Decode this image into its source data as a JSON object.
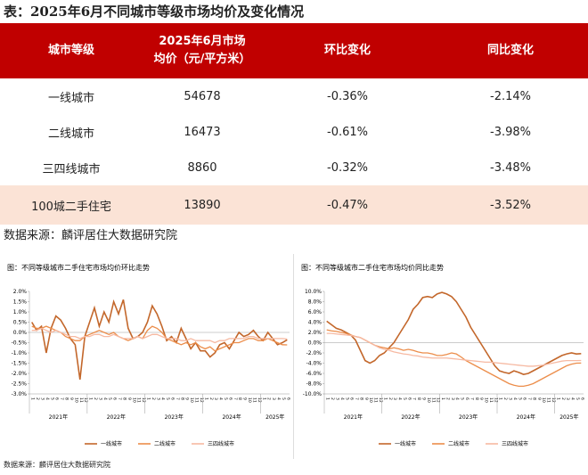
{
  "table": {
    "title": "表：2025年6月不同城市等级市场均价及变化情况",
    "header": [
      "城市等级",
      [
        "2025年6月市场",
        "均价（元/平方米）"
      ],
      "环比变化",
      "同比变化"
    ],
    "rows": [
      [
        "一线城市",
        "54678",
        "-0.36%",
        "-2.14%"
      ],
      [
        "二线城市",
        "16473",
        "-0.61%",
        "-3.98%"
      ],
      [
        "三四线城市",
        "8860",
        "-0.32%",
        "-3.48%"
      ],
      [
        "100城二手住宅",
        "13890",
        "-0.47%",
        "-3.52%"
      ]
    ]
  },
  "source": "数据来源：麟评居住大数据研究院",
  "footnote": "数据来源：麟评居住大数据研究院",
  "chart_data": [
    {
      "type": "line",
      "title": "图：不同等级城市二手住宅市场均价环比走势",
      "categories": [
        "1",
        "2",
        "3",
        "4",
        "5",
        "6",
        "7",
        "8",
        "9",
        "10",
        "11",
        "12",
        "1",
        "2",
        "3",
        "4",
        "5",
        "6",
        "7",
        "8",
        "9",
        "10",
        "11",
        "12",
        "1",
        "2",
        "3",
        "4",
        "5",
        "6",
        "7",
        "8",
        "9",
        "10",
        "11",
        "12",
        "1",
        "2",
        "3",
        "4",
        "5",
        "6",
        "7",
        "8",
        "9",
        "10",
        "11",
        "12",
        "1",
        "2",
        "3",
        "4",
        "5",
        "6"
      ],
      "category_groups": [
        {
          "label": "2021年",
          "size": 12
        },
        {
          "label": "2022年",
          "size": 12
        },
        {
          "label": "2023年",
          "size": 12
        },
        {
          "label": "2024年",
          "size": 12
        },
        {
          "label": "2025年",
          "size": 6
        }
      ],
      "ylim": [
        -3,
        2
      ],
      "yticks": [
        {
          "value": 2,
          "label": "2.0%"
        },
        {
          "value": 1.5,
          "label": "1.5%"
        },
        {
          "value": 1,
          "label": "1.0%"
        },
        {
          "value": 0.5,
          "label": "0.5%"
        },
        {
          "value": 0,
          "label": "0.0%"
        },
        {
          "value": -0.5,
          "label": "-0.5%"
        },
        {
          "value": -1,
          "label": "-1.0%"
        },
        {
          "value": -1.5,
          "label": "-1.5%"
        },
        {
          "value": -2,
          "label": "-2.0%"
        },
        {
          "value": -2.5,
          "label": "-2.5%"
        },
        {
          "value": -3,
          "label": "-3.0%"
        }
      ],
      "series": [
        {
          "name": "一线城市",
          "color": "#c3672b",
          "values": [
            0.5,
            0.1,
            0.3,
            -1.0,
            0.2,
            0.8,
            0.6,
            0.2,
            -0.3,
            -0.6,
            -2.3,
            -0.2,
            0.5,
            1.2,
            0.3,
            1.0,
            0.5,
            1.5,
            0.9,
            1.6,
            0.2,
            -0.3,
            -0.2,
            0.0,
            0.5,
            1.3,
            0.9,
            0.3,
            -0.4,
            -0.2,
            -0.5,
            0.2,
            -0.3,
            -0.8,
            -0.5,
            -0.9,
            -0.9,
            -1.2,
            -1.0,
            -0.6,
            -0.5,
            -0.8,
            -0.4,
            0.0,
            -0.2,
            -0.1,
            0.1,
            -0.2,
            -0.4,
            0.0,
            -0.3,
            -0.6,
            -0.5,
            -0.36
          ]
        },
        {
          "name": "二线城市",
          "color": "#ec8d4a",
          "values": [
            0.3,
            0.2,
            0.2,
            0.3,
            0.2,
            0.1,
            0.0,
            -0.2,
            -0.3,
            -0.4,
            -0.4,
            -0.2,
            -0.1,
            0.0,
            0.1,
            0.0,
            -0.1,
            0.0,
            -0.2,
            -0.3,
            -0.4,
            -0.3,
            -0.2,
            -0.3,
            0.1,
            0.3,
            0.2,
            0.0,
            -0.3,
            -0.4,
            -0.5,
            -0.6,
            -0.5,
            -0.6,
            -0.5,
            -0.7,
            -0.8,
            -0.7,
            -0.9,
            -0.8,
            -0.7,
            -0.6,
            -0.5,
            -0.5,
            -0.4,
            -0.3,
            -0.3,
            -0.4,
            -0.4,
            -0.3,
            -0.4,
            -0.5,
            -0.6,
            -0.61
          ]
        },
        {
          "name": "三四线城市",
          "color": "#f6b9a2",
          "values": [
            0.1,
            0.1,
            0.2,
            0.1,
            0.0,
            0.1,
            0.0,
            -0.1,
            -0.2,
            -0.2,
            -0.3,
            -0.2,
            -0.2,
            -0.1,
            -0.1,
            -0.2,
            -0.2,
            -0.1,
            -0.2,
            -0.3,
            -0.3,
            -0.3,
            -0.2,
            -0.3,
            -0.2,
            -0.1,
            -0.1,
            -0.2,
            -0.3,
            -0.3,
            -0.3,
            -0.4,
            -0.4,
            -0.3,
            -0.4,
            -0.4,
            -0.4,
            -0.4,
            -0.5,
            -0.4,
            -0.4,
            -0.3,
            -0.3,
            -0.3,
            -0.3,
            -0.2,
            -0.2,
            -0.3,
            -0.3,
            -0.3,
            -0.3,
            -0.3,
            -0.3,
            -0.32
          ]
        }
      ]
    },
    {
      "type": "line",
      "title": "图：不同等级城市二手住宅市场均价同比走势",
      "categories": [
        "1",
        "2",
        "3",
        "4",
        "5",
        "6",
        "7",
        "8",
        "9",
        "10",
        "11",
        "12",
        "1",
        "2",
        "3",
        "4",
        "5",
        "6",
        "7",
        "8",
        "9",
        "10",
        "11",
        "12",
        "1",
        "2",
        "3",
        "4",
        "5",
        "6",
        "7",
        "8",
        "9",
        "10",
        "11",
        "12",
        "1",
        "2",
        "3",
        "4",
        "5",
        "6",
        "7",
        "8",
        "9",
        "10",
        "11",
        "12",
        "1",
        "2",
        "3",
        "4",
        "5",
        "6"
      ],
      "category_groups": [
        {
          "label": "2021年",
          "size": 12
        },
        {
          "label": "2022年",
          "size": 12
        },
        {
          "label": "2023年",
          "size": 12
        },
        {
          "label": "2024年",
          "size": 12
        },
        {
          "label": "2025年",
          "size": 6
        }
      ],
      "ylim": [
        -10,
        10
      ],
      "yticks": [
        {
          "value": 10,
          "label": "10.0%"
        },
        {
          "value": 8,
          "label": "8.0%"
        },
        {
          "value": 6,
          "label": "6.0%"
        },
        {
          "value": 4,
          "label": "4.0%"
        },
        {
          "value": 2,
          "label": "2.0%"
        },
        {
          "value": 0,
          "label": "0.0%"
        },
        {
          "value": -2,
          "label": "-2.0%"
        },
        {
          "value": -4,
          "label": "-4.0%"
        },
        {
          "value": -6,
          "label": "-6.0%"
        },
        {
          "value": -8,
          "label": "-8.0%"
        },
        {
          "value": -10,
          "label": "-10.0%"
        }
      ],
      "series": [
        {
          "name": "一线城市",
          "color": "#c3672b",
          "values": [
            4.2,
            3.5,
            2.8,
            2.5,
            2.0,
            1.5,
            0.5,
            -1.5,
            -3.5,
            -4.0,
            -3.5,
            -2.5,
            -2.0,
            -1.0,
            0.0,
            1.5,
            3.0,
            4.5,
            6.5,
            7.5,
            8.8,
            9.0,
            8.8,
            9.5,
            9.8,
            9.5,
            9.0,
            8.0,
            6.5,
            5.0,
            3.0,
            1.5,
            0.0,
            -1.5,
            -3.0,
            -4.5,
            -5.5,
            -5.8,
            -6.0,
            -5.5,
            -5.8,
            -6.2,
            -6.0,
            -5.5,
            -5.0,
            -4.5,
            -4.0,
            -3.5,
            -3.0,
            -2.5,
            -2.2,
            -2.0,
            -2.2,
            -2.14
          ]
        },
        {
          "name": "二线城市",
          "color": "#ec8d4a",
          "values": [
            2.5,
            2.3,
            2.2,
            2.0,
            1.8,
            1.5,
            1.2,
            1.0,
            0.5,
            0.0,
            -0.5,
            -0.8,
            -1.0,
            -1.2,
            -1.0,
            -1.2,
            -1.5,
            -1.3,
            -1.5,
            -1.8,
            -2.0,
            -2.0,
            -2.2,
            -2.5,
            -2.5,
            -2.3,
            -2.0,
            -2.2,
            -2.8,
            -3.5,
            -4.0,
            -4.5,
            -5.0,
            -5.5,
            -6.0,
            -6.5,
            -7.0,
            -7.5,
            -8.0,
            -8.3,
            -8.5,
            -8.5,
            -8.3,
            -8.0,
            -7.5,
            -7.0,
            -6.5,
            -6.0,
            -5.5,
            -5.0,
            -4.5,
            -4.2,
            -4.0,
            -3.98
          ]
        },
        {
          "name": "三四线城市",
          "color": "#f6b9a2",
          "values": [
            1.8,
            1.8,
            1.7,
            1.6,
            1.5,
            1.4,
            1.2,
            1.0,
            0.5,
            0.0,
            -0.5,
            -1.0,
            -1.3,
            -1.5,
            -1.8,
            -2.0,
            -2.2,
            -2.3,
            -2.5,
            -2.6,
            -2.8,
            -2.9,
            -3.0,
            -3.0,
            -3.0,
            -3.0,
            -3.1,
            -3.2,
            -3.3,
            -3.4,
            -3.5,
            -3.6,
            -3.7,
            -3.8,
            -3.8,
            -3.9,
            -4.0,
            -4.1,
            -4.2,
            -4.3,
            -4.4,
            -4.5,
            -4.6,
            -4.6,
            -4.5,
            -4.4,
            -4.2,
            -4.0,
            -3.8,
            -3.6,
            -3.5,
            -3.5,
            -3.5,
            -3.48
          ]
        }
      ]
    }
  ]
}
